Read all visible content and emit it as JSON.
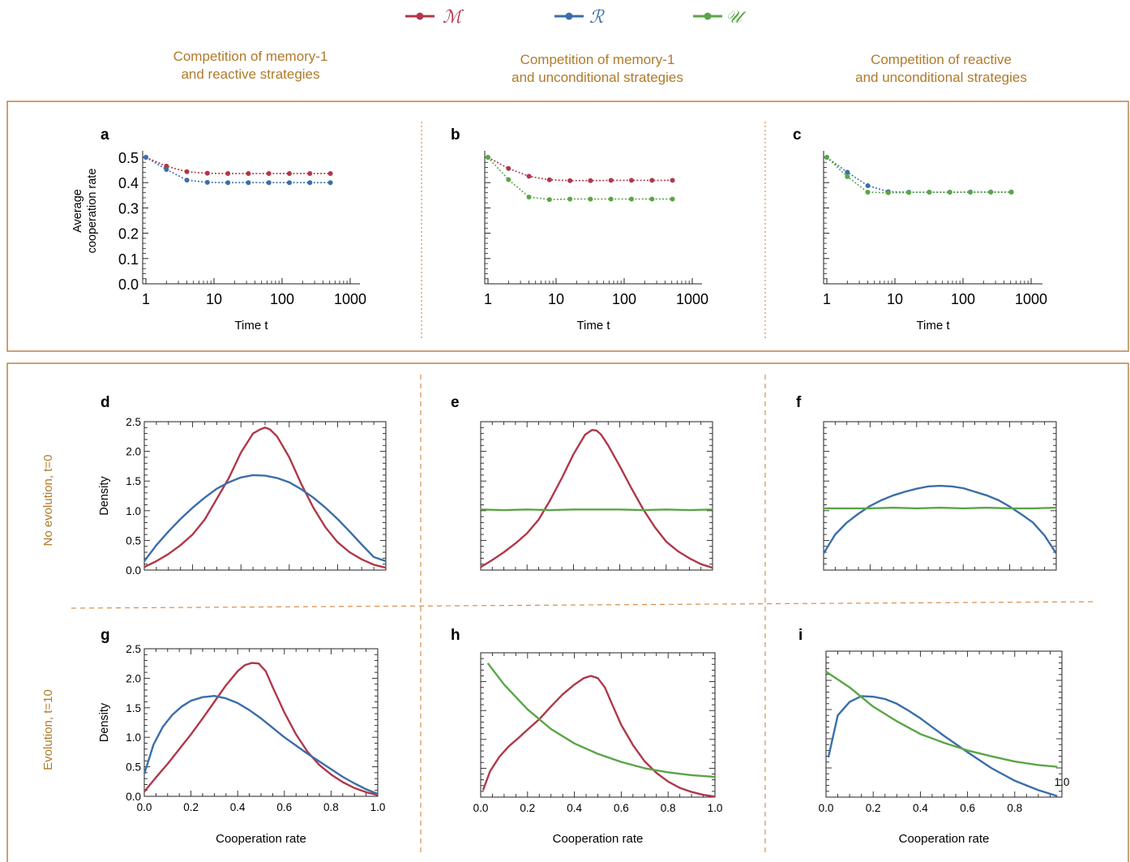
{
  "legend": [
    {
      "label": "ℳ",
      "color": "#b0384a"
    },
    {
      "label": "ℛ",
      "color": "#3b6ea8"
    },
    {
      "label": "𝒰",
      "color": "#5aa547"
    }
  ],
  "column_titles": [
    [
      "Competition of memory-1",
      "and reactive strategies"
    ],
    [
      "Competition of memory-1",
      "and unconditional strategies"
    ],
    [
      "Competition of reactive",
      "and unconditional strategies"
    ]
  ],
  "row_labels": [
    "No evolution, t=0",
    "Evolution, t=10"
  ],
  "colors": {
    "frame": "#b9844a",
    "divider": "#d98c4a",
    "title": "#b07a2a",
    "M": "#b0384a",
    "R": "#3b6ea8",
    "U": "#5aa547"
  },
  "chart_data": [
    {
      "panel": "a",
      "type": "line",
      "xscale": "log",
      "xlabel": "Time t",
      "ylabel": [
        "Average",
        "cooperation rate"
      ],
      "xticks": [
        "1",
        "10",
        "100",
        "1000"
      ],
      "yticks": [
        "0.0",
        "0.1",
        "0.2",
        "0.3",
        "0.4",
        "0.5"
      ],
      "ylim": [
        0,
        0.5
      ],
      "x": [
        1,
        2,
        4,
        8,
        16,
        32,
        64,
        128,
        256,
        512
      ],
      "series": [
        {
          "name": "ℳ",
          "color": "#b0384a",
          "values": [
            0.5,
            0.465,
            0.443,
            0.437,
            0.436,
            0.436,
            0.436,
            0.436,
            0.436,
            0.436
          ]
        },
        {
          "name": "ℛ",
          "color": "#3b6ea8",
          "values": [
            0.5,
            0.452,
            0.41,
            0.401,
            0.4,
            0.4,
            0.4,
            0.4,
            0.4,
            0.4
          ]
        }
      ]
    },
    {
      "panel": "b",
      "type": "line",
      "xscale": "log",
      "xlabel": "Time t",
      "ylabel": [],
      "xticks": [
        "1",
        "10",
        "100",
        "1000"
      ],
      "yticks": [],
      "ylim": [
        0,
        0.5
      ],
      "x": [
        1,
        2,
        4,
        8,
        16,
        32,
        64,
        128,
        256,
        512
      ],
      "series": [
        {
          "name": "ℳ",
          "color": "#b0384a",
          "values": [
            0.5,
            0.456,
            0.425,
            0.411,
            0.408,
            0.408,
            0.409,
            0.409,
            0.409,
            0.409
          ]
        },
        {
          "name": "𝒰",
          "color": "#5aa547",
          "values": [
            0.5,
            0.412,
            0.343,
            0.333,
            0.335,
            0.335,
            0.335,
            0.335,
            0.335,
            0.335
          ]
        }
      ]
    },
    {
      "panel": "c",
      "type": "line",
      "xscale": "log",
      "xlabel": "Time t",
      "ylabel": [],
      "xticks": [
        "1",
        "10",
        "100",
        "1000"
      ],
      "yticks": [],
      "ylim": [
        0,
        0.5
      ],
      "x": [
        1,
        2,
        4,
        8,
        16,
        32,
        64,
        128,
        256,
        512
      ],
      "series": [
        {
          "name": "ℛ",
          "color": "#3b6ea8",
          "values": [
            0.5,
            0.441,
            0.388,
            0.364,
            0.362,
            0.362,
            0.362,
            0.363,
            0.363,
            0.363
          ]
        },
        {
          "name": "𝒰",
          "color": "#5aa547",
          "values": [
            0.5,
            0.424,
            0.362,
            0.36,
            0.361,
            0.362,
            0.362,
            0.362,
            0.362,
            0.362
          ]
        }
      ]
    },
    {
      "panel": "d",
      "type": "line",
      "xlabel": "",
      "ylabel": [
        "Density"
      ],
      "xticks": [],
      "yticks": [
        "0.0",
        "0.5",
        "1.0",
        "1.5",
        "2.0",
        "2.5"
      ],
      "xlim": [
        0,
        1
      ],
      "ylim": [
        0,
        2.5
      ],
      "series": [
        {
          "name": "ℳ",
          "color": "#b0384a",
          "x": [
            0.0,
            0.05,
            0.1,
            0.15,
            0.2,
            0.25,
            0.3,
            0.35,
            0.4,
            0.45,
            0.48,
            0.5,
            0.52,
            0.55,
            0.6,
            0.65,
            0.7,
            0.75,
            0.8,
            0.85,
            0.9,
            0.95,
            1.0
          ],
          "values": [
            0.05,
            0.15,
            0.27,
            0.42,
            0.6,
            0.85,
            1.2,
            1.55,
            1.98,
            2.3,
            2.37,
            2.4,
            2.37,
            2.25,
            1.9,
            1.45,
            1.05,
            0.72,
            0.47,
            0.3,
            0.18,
            0.09,
            0.04
          ]
        },
        {
          "name": "ℛ",
          "color": "#3b6ea8",
          "x": [
            0.0,
            0.05,
            0.1,
            0.15,
            0.2,
            0.25,
            0.3,
            0.35,
            0.4,
            0.45,
            0.5,
            0.55,
            0.6,
            0.65,
            0.7,
            0.75,
            0.8,
            0.85,
            0.9,
            0.95,
            1.0
          ],
          "values": [
            0.15,
            0.42,
            0.65,
            0.86,
            1.05,
            1.22,
            1.37,
            1.48,
            1.56,
            1.6,
            1.59,
            1.55,
            1.48,
            1.36,
            1.22,
            1.05,
            0.86,
            0.65,
            0.43,
            0.22,
            0.15
          ]
        }
      ]
    },
    {
      "panel": "e",
      "type": "line",
      "xlabel": "",
      "ylabel": [],
      "xticks": [],
      "yticks": [],
      "xlim": [
        0,
        1
      ],
      "ylim": [
        0,
        2.5
      ],
      "series": [
        {
          "name": "ℳ",
          "color": "#b0384a",
          "x": [
            0.0,
            0.05,
            0.1,
            0.15,
            0.2,
            0.25,
            0.3,
            0.35,
            0.4,
            0.45,
            0.48,
            0.5,
            0.52,
            0.55,
            0.6,
            0.65,
            0.7,
            0.75,
            0.8,
            0.85,
            0.9,
            0.95,
            1.0
          ],
          "values": [
            0.05,
            0.17,
            0.3,
            0.45,
            0.62,
            0.85,
            1.18,
            1.55,
            1.95,
            2.28,
            2.36,
            2.35,
            2.28,
            2.1,
            1.75,
            1.38,
            1.03,
            0.73,
            0.48,
            0.32,
            0.2,
            0.1,
            0.04
          ]
        },
        {
          "name": "𝒰",
          "color": "#5aa547",
          "x": [
            0.0,
            0.1,
            0.2,
            0.3,
            0.4,
            0.5,
            0.6,
            0.7,
            0.8,
            0.9,
            1.0
          ],
          "values": [
            1.02,
            1.01,
            1.02,
            1.01,
            1.02,
            1.02,
            1.02,
            1.01,
            1.02,
            1.01,
            1.02
          ]
        }
      ]
    },
    {
      "panel": "f",
      "type": "line",
      "xlabel": "",
      "ylabel": [],
      "xticks": [],
      "yticks": [],
      "xlim": [
        0,
        1
      ],
      "ylim": [
        0,
        2.5
      ],
      "series": [
        {
          "name": "ℛ",
          "color": "#3b6ea8",
          "x": [
            0.0,
            0.05,
            0.1,
            0.15,
            0.2,
            0.25,
            0.3,
            0.35,
            0.4,
            0.45,
            0.5,
            0.55,
            0.6,
            0.65,
            0.7,
            0.75,
            0.8,
            0.85,
            0.9,
            0.95,
            1.0
          ],
          "values": [
            0.28,
            0.6,
            0.8,
            0.95,
            1.08,
            1.18,
            1.26,
            1.32,
            1.37,
            1.41,
            1.42,
            1.41,
            1.38,
            1.32,
            1.26,
            1.18,
            1.07,
            0.94,
            0.8,
            0.58,
            0.28
          ]
        },
        {
          "name": "𝒰",
          "color": "#5aa547",
          "x": [
            0.0,
            0.1,
            0.2,
            0.3,
            0.4,
            0.5,
            0.6,
            0.7,
            0.8,
            0.9,
            1.0
          ],
          "values": [
            1.04,
            1.04,
            1.04,
            1.05,
            1.04,
            1.05,
            1.04,
            1.05,
            1.04,
            1.04,
            1.05
          ]
        }
      ]
    },
    {
      "panel": "g",
      "type": "line",
      "xlabel": "Cooperation rate",
      "ylabel": [
        "Density"
      ],
      "xticks": [
        "0.0",
        "0.2",
        "0.4",
        "0.6",
        "0.8",
        "1.0"
      ],
      "yticks": [
        "0.0",
        "0.5",
        "1.0",
        "1.5",
        "2.0",
        "2.5"
      ],
      "xlim": [
        0,
        1
      ],
      "ylim": [
        0,
        2.5
      ],
      "series": [
        {
          "name": "ℳ",
          "color": "#b0384a",
          "x": [
            0.0,
            0.05,
            0.1,
            0.15,
            0.2,
            0.25,
            0.3,
            0.35,
            0.4,
            0.43,
            0.46,
            0.49,
            0.52,
            0.55,
            0.6,
            0.65,
            0.7,
            0.75,
            0.8,
            0.85,
            0.9,
            0.95,
            1.0
          ],
          "values": [
            0.08,
            0.32,
            0.55,
            0.8,
            1.05,
            1.32,
            1.6,
            1.88,
            2.12,
            2.22,
            2.26,
            2.25,
            2.12,
            1.85,
            1.42,
            1.05,
            0.75,
            0.53,
            0.37,
            0.24,
            0.14,
            0.07,
            0.02
          ]
        },
        {
          "name": "ℛ",
          "color": "#3b6ea8",
          "x": [
            0.0,
            0.04,
            0.08,
            0.12,
            0.16,
            0.2,
            0.25,
            0.3,
            0.35,
            0.4,
            0.45,
            0.5,
            0.55,
            0.6,
            0.65,
            0.7,
            0.75,
            0.8,
            0.85,
            0.9,
            0.95,
            1.0
          ],
          "values": [
            0.38,
            0.88,
            1.18,
            1.38,
            1.52,
            1.62,
            1.68,
            1.7,
            1.66,
            1.58,
            1.46,
            1.32,
            1.16,
            1.0,
            0.86,
            0.72,
            0.59,
            0.46,
            0.33,
            0.22,
            0.12,
            0.04
          ]
        }
      ]
    },
    {
      "panel": "h",
      "type": "line",
      "xlabel": "Cooperation rate",
      "ylabel": [],
      "xticks": [
        "0.0",
        "0.2",
        "0.4",
        "0.6",
        "0.8",
        "1.0"
      ],
      "yticks": [],
      "xlim": [
        0,
        1
      ],
      "ylim": [
        0,
        2.5
      ],
      "series": [
        {
          "name": "ℳ",
          "color": "#b0384a",
          "x": [
            0.01,
            0.04,
            0.08,
            0.12,
            0.16,
            0.2,
            0.25,
            0.3,
            0.35,
            0.4,
            0.44,
            0.47,
            0.5,
            0.53,
            0.56,
            0.6,
            0.65,
            0.7,
            0.75,
            0.8,
            0.85,
            0.9,
            0.95,
            1.0
          ],
          "values": [
            0.12,
            0.45,
            0.7,
            0.88,
            1.02,
            1.17,
            1.35,
            1.57,
            1.78,
            1.95,
            2.06,
            2.1,
            2.06,
            1.9,
            1.62,
            1.25,
            0.9,
            0.62,
            0.42,
            0.27,
            0.16,
            0.09,
            0.04,
            0.01
          ]
        },
        {
          "name": "𝒰",
          "color": "#5aa547",
          "x": [
            0.03,
            0.1,
            0.2,
            0.3,
            0.4,
            0.5,
            0.6,
            0.7,
            0.8,
            0.9,
            1.0
          ],
          "values": [
            2.32,
            1.95,
            1.52,
            1.18,
            0.93,
            0.75,
            0.61,
            0.5,
            0.43,
            0.38,
            0.35
          ]
        }
      ]
    },
    {
      "panel": "i",
      "type": "line",
      "xlabel": "Cooperation rate",
      "ylabel": [],
      "xticks": [
        "0.0",
        "0.2",
        "0.4",
        "0.6",
        "0.8"
      ],
      "xtick_extra": "1.0",
      "yticks": [],
      "xlim": [
        0,
        1
      ],
      "ylim": [
        0,
        2.5
      ],
      "series": [
        {
          "name": "ℛ",
          "color": "#3b6ea8",
          "x": [
            0.01,
            0.05,
            0.1,
            0.15,
            0.2,
            0.25,
            0.3,
            0.35,
            0.4,
            0.5,
            0.6,
            0.7,
            0.8,
            0.9,
            0.98
          ],
          "values": [
            0.68,
            1.4,
            1.63,
            1.73,
            1.72,
            1.68,
            1.6,
            1.48,
            1.35,
            1.05,
            0.77,
            0.5,
            0.28,
            0.12,
            0.02
          ]
        },
        {
          "name": "𝒰",
          "color": "#5aa547",
          "x": [
            0.0,
            0.1,
            0.2,
            0.3,
            0.4,
            0.5,
            0.6,
            0.7,
            0.8,
            0.9,
            0.98
          ],
          "values": [
            2.15,
            1.88,
            1.55,
            1.3,
            1.08,
            0.93,
            0.8,
            0.7,
            0.61,
            0.55,
            0.52
          ]
        }
      ]
    }
  ]
}
